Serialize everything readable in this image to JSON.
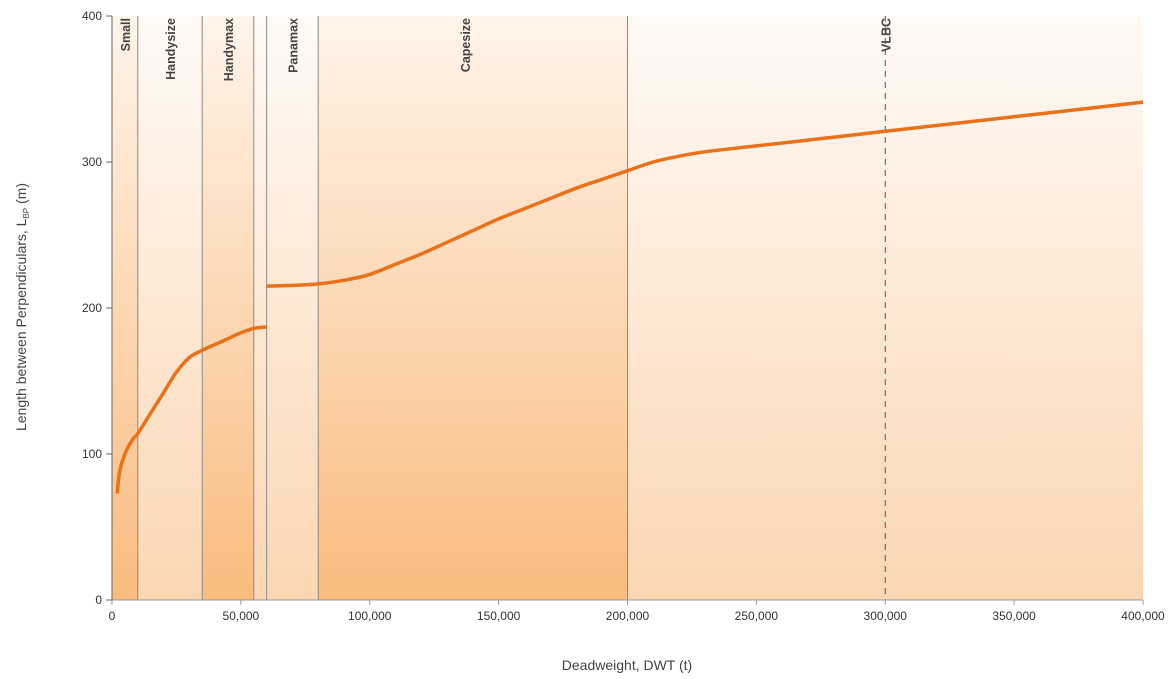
{
  "chart_data": {
    "type": "line",
    "title": "",
    "xlabel": "Deadweight, DWT (t)",
    "ylabel_main": "Length between Perpendiculars, L",
    "ylabel_sub": "BP",
    "ylabel_unit": " (m)",
    "xlim": [
      0,
      400000
    ],
    "ylim": [
      0,
      400
    ],
    "x_ticks": [
      0,
      50000,
      100000,
      150000,
      200000,
      250000,
      300000,
      350000,
      400000
    ],
    "x_tick_labels": [
      "0",
      "50,000",
      "100,000",
      "150,000",
      "200,000",
      "250,000",
      "300,000",
      "350,000",
      "400,000"
    ],
    "y_ticks": [
      0,
      100,
      200,
      300,
      400
    ],
    "y_tick_labels": [
      "0",
      "100",
      "200",
      "300",
      "400"
    ],
    "grid": false,
    "bands": [
      {
        "name": "Small",
        "x_start": 0,
        "x_end": 10000
      },
      {
        "name": "Handysize",
        "x_start": 10000,
        "x_end": 35000
      },
      {
        "name": "Handymax",
        "x_start": 35000,
        "x_end": 55000
      },
      {
        "name": "Panamax",
        "x_start": 60000,
        "x_end": 80000
      },
      {
        "name": "Capesize",
        "x_start": 80000,
        "x_end": 200000
      },
      {
        "name": "VLBC",
        "x_start": 300000,
        "x_end": 400000
      }
    ],
    "boundaries": [
      {
        "x": 10000,
        "style": "solid"
      },
      {
        "x": 35000,
        "style": "solid"
      },
      {
        "x": 55000,
        "style": "solid"
      },
      {
        "x": 60000,
        "style": "solid"
      },
      {
        "x": 80000,
        "style": "solid"
      },
      {
        "x": 200000,
        "style": "solid"
      },
      {
        "x": 300000,
        "style": "dashed"
      }
    ],
    "series": [
      {
        "name": "",
        "color": "#e8711a",
        "segments": [
          [
            [
              2000,
              73
            ],
            [
              3000,
              88
            ],
            [
              5000,
              100
            ],
            [
              8000,
              110
            ],
            [
              10000,
              114
            ],
            [
              15000,
              128
            ],
            [
              20000,
              142
            ],
            [
              25000,
              156
            ],
            [
              30000,
              166
            ],
            [
              35000,
              171
            ],
            [
              40000,
              175
            ],
            [
              45000,
              179
            ],
            [
              50000,
              183
            ],
            [
              55000,
              186
            ],
            [
              60000,
              187
            ]
          ],
          [
            [
              60000,
              215
            ],
            [
              70000,
              215.5
            ],
            [
              80000,
              216.5
            ],
            [
              90000,
              219
            ],
            [
              100000,
              223
            ],
            [
              110000,
              230
            ],
            [
              120000,
              237
            ],
            [
              130000,
              245
            ],
            [
              140000,
              253
            ],
            [
              150000,
              261
            ],
            [
              160000,
              268
            ],
            [
              170000,
              275
            ],
            [
              180000,
              282
            ],
            [
              190000,
              288
            ],
            [
              200000,
              294
            ],
            [
              210000,
              300
            ],
            [
              220000,
              304
            ],
            [
              230000,
              307
            ],
            [
              250000,
              311
            ],
            [
              275000,
              316
            ],
            [
              300000,
              321
            ],
            [
              350000,
              331
            ],
            [
              400000,
              341
            ]
          ]
        ]
      }
    ]
  },
  "colors": {
    "curve": "#e8711a",
    "band_bottom": "#f9bb7e",
    "band_top": "#fff3e8",
    "band_light_bottom": "#fbd4ae",
    "band_light_top": "#fffaf5",
    "lines": "#888888"
  }
}
